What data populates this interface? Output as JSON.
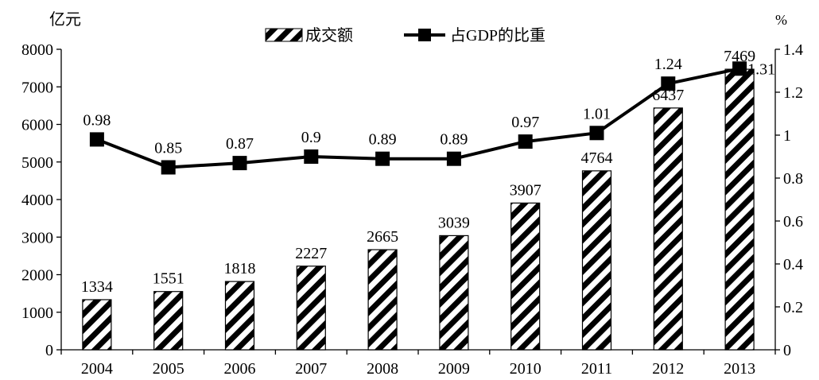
{
  "chart_data": {
    "type": "bar",
    "categories": [
      "2004",
      "2005",
      "2006",
      "2007",
      "2008",
      "2009",
      "2010",
      "2011",
      "2012",
      "2013"
    ],
    "series": [
      {
        "name": "成交额",
        "type": "bar",
        "axis": "left",
        "values": [
          1334,
          1551,
          1818,
          2227,
          2665,
          3039,
          3907,
          4764,
          6437,
          7469
        ]
      },
      {
        "name": "占GDP的比重",
        "type": "line",
        "axis": "right",
        "values": [
          0.98,
          0.85,
          0.87,
          0.9,
          0.89,
          0.89,
          0.97,
          1.01,
          1.24,
          1.31
        ]
      }
    ],
    "bar_labels": [
      "1334",
      "1551",
      "1818",
      "2227",
      "2665",
      "3039",
      "3907",
      "4764",
      "6437",
      "7469"
    ],
    "line_labels": [
      "0.98",
      "0.85",
      "0.87",
      "0.9",
      "0.89",
      "0.89",
      "0.97",
      "1.01",
      "1.24",
      "1.31"
    ],
    "y_left": {
      "unit_label": "亿元",
      "min": 0,
      "max": 8000,
      "ticks": [
        "0",
        "1000",
        "2000",
        "3000",
        "4000",
        "5000",
        "6000",
        "7000",
        "8000"
      ]
    },
    "y_right": {
      "unit_label": "%",
      "min": 0,
      "max": 1.4,
      "ticks": [
        "0",
        "0.2",
        "0.4",
        "0.6",
        "0.8",
        "1",
        "1.2",
        "1.4"
      ]
    },
    "legend": {
      "position": "top-center",
      "bar_label": "成交额",
      "line_label": "占GDP的比重"
    },
    "grid": false,
    "colors": {
      "bar_stripe": "#000000",
      "line": "#000000",
      "marker": "#000000"
    }
  }
}
